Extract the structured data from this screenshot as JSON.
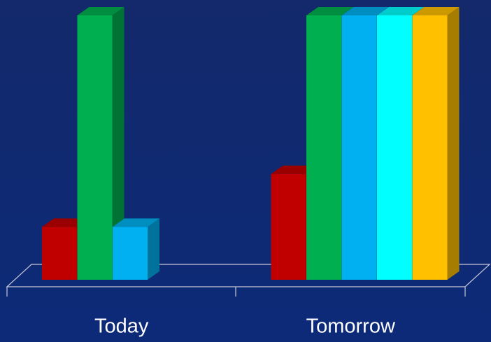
{
  "chart_data": {
    "type": "bar3d",
    "categories": [
      "Today",
      "Tomorrow"
    ],
    "series": [
      {
        "color": "#c00000",
        "values": [
          20,
          40
        ]
      },
      {
        "color": "#00b050",
        "values": [
          100,
          100
        ]
      },
      {
        "color": "#00b0f0",
        "values": [
          20,
          100
        ]
      },
      {
        "color": "#00ffff",
        "values": [
          null,
          100
        ]
      },
      {
        "color": "#ffc000",
        "values": [
          null,
          100
        ]
      }
    ],
    "ylim": [
      0,
      100
    ]
  }
}
